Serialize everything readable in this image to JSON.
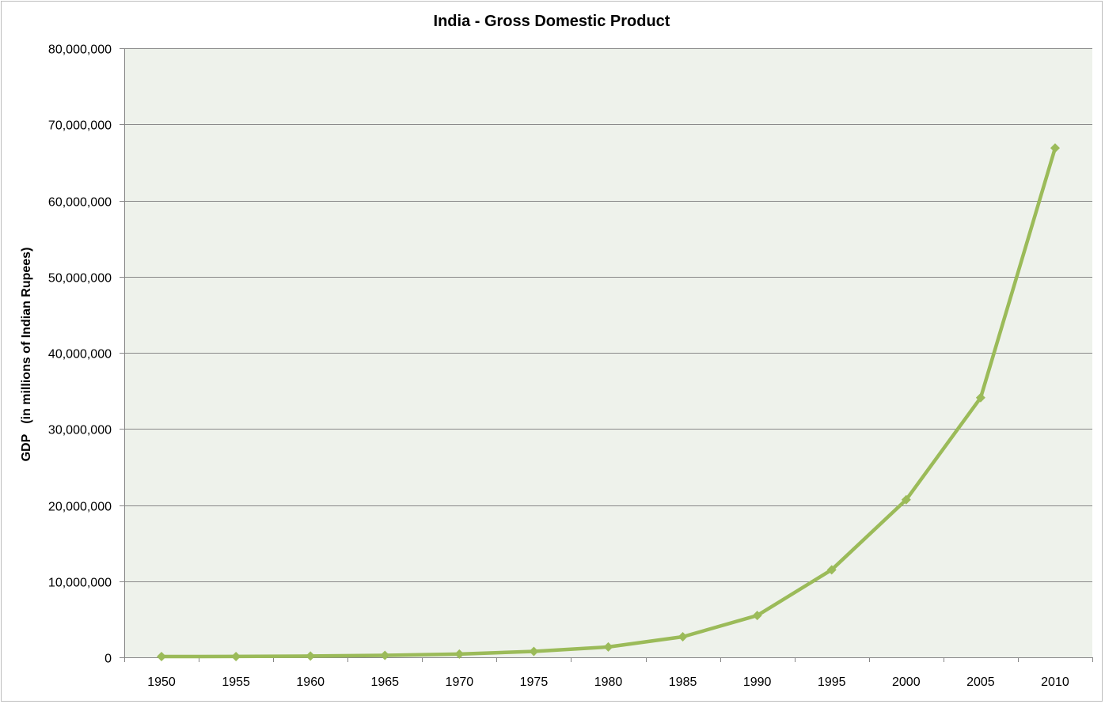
{
  "chart_data": {
    "type": "line",
    "title": "India - Gross Domestic Product",
    "xlabel": "",
    "ylabel": "GDP   (in millions of Indian Rupees)",
    "categories": [
      "1950",
      "1955",
      "1960",
      "1965",
      "1970",
      "1975",
      "1980",
      "1985",
      "1990",
      "1995",
      "2000",
      "2005",
      "2010"
    ],
    "series": [
      {
        "values": [
          100000,
          110000,
          170000,
          260000,
          430000,
          780000,
          1360000,
          2700000,
          5500000,
          11500000,
          20700000,
          34100000,
          66900000
        ]
      }
    ],
    "ylim": [
      0,
      80000000
    ],
    "yticks": [
      0,
      10000000,
      20000000,
      30000000,
      40000000,
      50000000,
      60000000,
      70000000,
      80000000
    ],
    "ytick_labels": [
      "0",
      "10,000,000",
      "20,000,000",
      "30,000,000",
      "40,000,000",
      "50,000,000",
      "60,000,000",
      "70,000,000",
      "80,000,000"
    ],
    "grid": true,
    "legend": "none",
    "marker": "diamond",
    "colors": {
      "line": "#9bbb59",
      "plot_background": "#eef2eb",
      "gridline": "#888888",
      "axis": "#868686"
    }
  }
}
